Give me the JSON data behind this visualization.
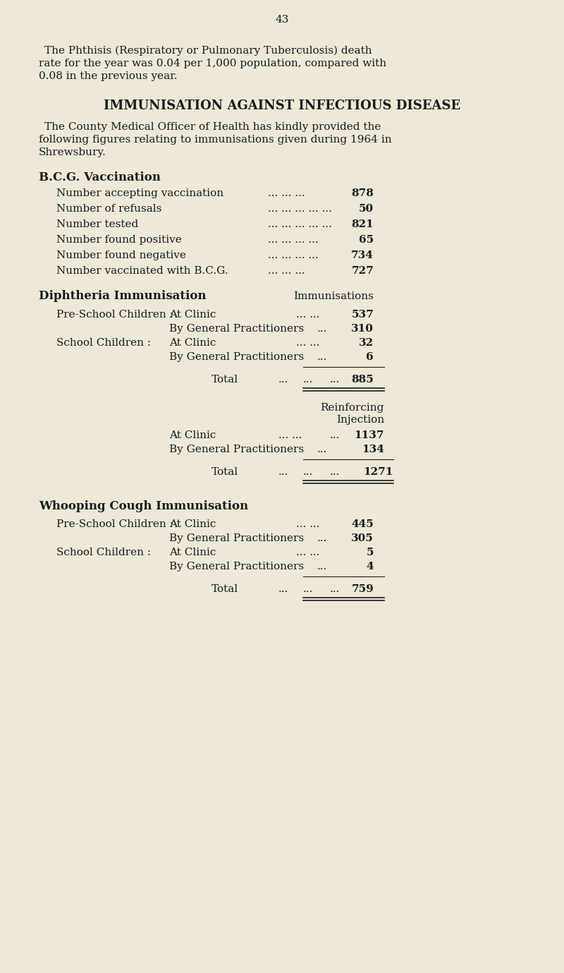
{
  "background_color": "#ede8d8",
  "page_number": "43",
  "font_color": "#1a1a1a",
  "bcg_rows": [
    [
      "Number accepting vaccination",
      "... ... ...",
      "878"
    ],
    [
      "Number of refusals",
      "... ... ... ... ...",
      "50"
    ],
    [
      "Number tested",
      "... ... ... ... ...",
      "821"
    ],
    [
      "Number found positive",
      "... ... ... ...",
      "65"
    ],
    [
      "Number found negative",
      "... ... ... ...",
      "734"
    ],
    [
      "Number vaccinated with B.C.G.",
      "... ... ...",
      "727"
    ]
  ],
  "diph_rows": [
    [
      "Pre-School Children :",
      "At Clinic",
      "... ...",
      "537"
    ],
    [
      "",
      "By General Practitioners",
      "...",
      "310"
    ],
    [
      "School Children :",
      "At Clinic",
      "... ...",
      "32"
    ],
    [
      "",
      "By General Practitioners",
      "...",
      "6"
    ]
  ],
  "diph_total": "885",
  "reinf_rows": [
    [
      "At Clinic",
      "... ...",
      "1137"
    ],
    [
      "By General Practitioners",
      "...",
      "134"
    ]
  ],
  "reinf_total": "1271",
  "whooping_rows": [
    [
      "Pre-School Children :",
      "At Clinic",
      "... ...",
      "445"
    ],
    [
      "",
      "By General Practitioners",
      "...",
      "305"
    ],
    [
      "School Children :",
      "At Clinic",
      "... ...",
      "5"
    ],
    [
      "",
      "By General Practitioners",
      "...",
      "4"
    ]
  ],
  "whooping_total": "759"
}
